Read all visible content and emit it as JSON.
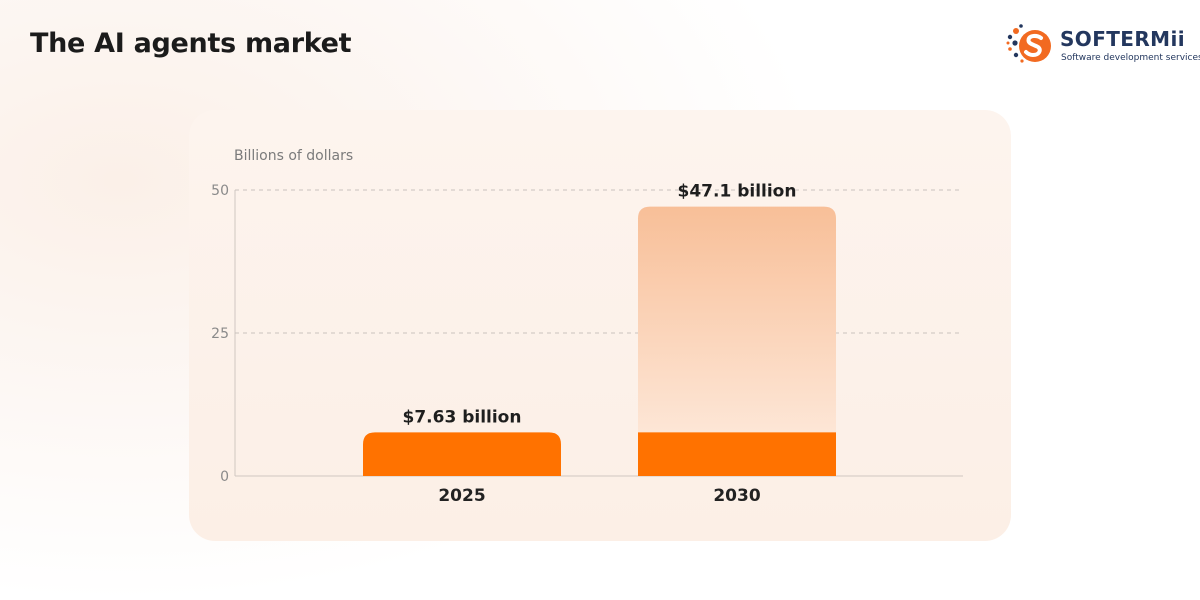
{
  "header": {
    "title": "The AI agents market"
  },
  "brand": {
    "name": "SOFTERMii",
    "tagline": "Software development services",
    "logo_icon": "s-letter-dots-icon",
    "logo_color": "#f26a21",
    "text_color": "#23375e"
  },
  "chart_data": {
    "type": "bar",
    "title": "",
    "ylabel": "Billions of dollars",
    "xlabel": "",
    "ylim": [
      0,
      50
    ],
    "yticks": [
      0,
      25,
      50
    ],
    "grid": "dashed horizontal",
    "categories": [
      "2025",
      "2030"
    ],
    "values": [
      7.63,
      47.1
    ],
    "value_labels": [
      "$7.63 billion",
      "$47.1 billion"
    ],
    "colors": {
      "base": "#ff7200",
      "growth_top": "#f8bf98",
      "growth_bottom": "#fde6d6"
    }
  }
}
